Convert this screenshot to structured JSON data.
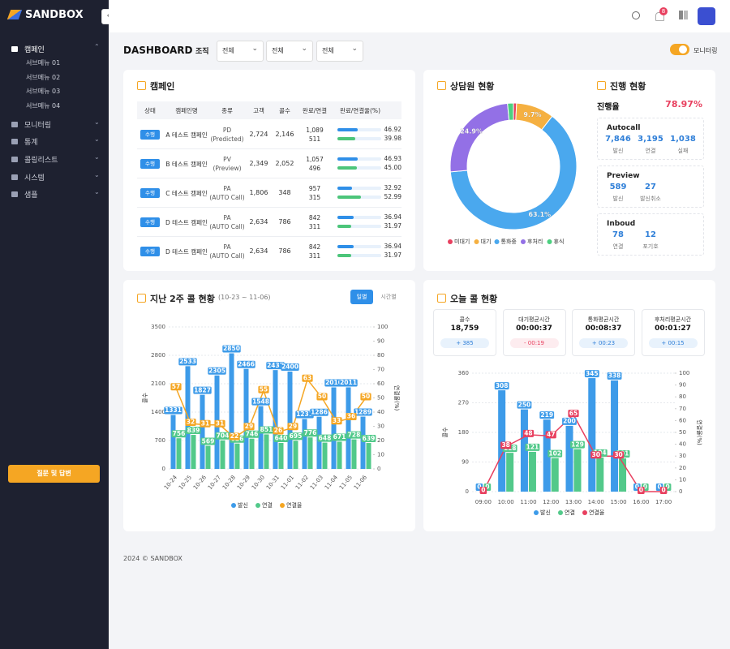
{
  "sidebar": {
    "logo": "SANDBOX",
    "menu": [
      {
        "label": "캠페인",
        "children": [
          "서브메뉴 01",
          "서브메뉴 02",
          "서브메뉴 03",
          "서브메뉴 04"
        ]
      },
      {
        "label": "모니터링"
      },
      {
        "label": "통계"
      },
      {
        "label": "콜링리스트"
      },
      {
        "label": "시스템"
      },
      {
        "label": "샘플"
      }
    ],
    "help_button": "질문 및 답변"
  },
  "topbar": {
    "notification_count": 8
  },
  "header": {
    "title": "DASHBOARD",
    "org_label": "조직",
    "filters": [
      "전체",
      "전체",
      "전체"
    ],
    "monitoring_label": "모니터링"
  },
  "campaign": {
    "title": "캠페인",
    "columns": [
      "상태",
      "캠페인명",
      "종류",
      "고객",
      "콜수",
      "완료/연결",
      "완료/연결율(%)"
    ],
    "rows": [
      {
        "status": "수행",
        "name": "A 테스트 캠페인",
        "type": "PD",
        "type_detail": "(Predicted)",
        "customers": "2,724",
        "calls": "2,146",
        "completed": "1,089",
        "connected": "511",
        "completion_rate": 46.92,
        "connection_rate": 39.98
      },
      {
        "status": "수행",
        "name": "B 테스트 캠페인",
        "type": "PV",
        "type_detail": "(Preview)",
        "customers": "2,349",
        "calls": "2,052",
        "completed": "1,057",
        "connected": "496",
        "completion_rate": 46.93,
        "connection_rate": {
          "value": 45,
          "label": "45.00"
        }
      },
      {
        "status": "수행",
        "name": "C 테스트 캠페인",
        "type": "PA",
        "type_detail": "(AUTO Call)",
        "customers": "1,806",
        "calls": "348",
        "completed": "957",
        "connected": "315",
        "completion_rate": 32.92,
        "connection_rate": 52.99
      },
      {
        "status": "수행",
        "name": "D 테스트 캠페인",
        "type": "PA",
        "type_detail": "(AUTO Call)",
        "customers": "2,634",
        "calls": "786",
        "completed": "842",
        "connected": "311",
        "completion_rate": 36.94,
        "connection_rate": 31.97
      },
      {
        "status": "수행",
        "name": "D 테스트 캠페인",
        "type": "PA",
        "type_detail": "(AUTO Call)",
        "customers": "2,634",
        "calls": "786",
        "completed": "842",
        "connected": "311",
        "completion_rate": 36.94,
        "connection_rate": 31.97
      }
    ]
  },
  "progress": {
    "title": "진행 현황",
    "rate_label": "진행율",
    "rate": "78.97%",
    "groups": [
      {
        "name": "Autocall",
        "stats": [
          {
            "value": "7,846",
            "label": "발신"
          },
          {
            "value": "3,195",
            "label": "연결"
          },
          {
            "value": "1,038",
            "label": "실패"
          }
        ]
      },
      {
        "name": "Preview",
        "stats": [
          {
            "value": "589",
            "label": "발신"
          },
          {
            "value": "27",
            "label": "발신취소"
          }
        ]
      },
      {
        "name": "Inboud",
        "stats": [
          {
            "value": "78",
            "label": "연결"
          },
          {
            "value": "12",
            "label": "포기호"
          }
        ]
      }
    ]
  },
  "chart_data": [
    {
      "type": "donut",
      "title": "상담원 현황",
      "categories": [
        "미대기",
        "대기",
        "통화중",
        "후처리",
        "휴식"
      ],
      "values": [
        0.8,
        9.7,
        63.1,
        24.9,
        1.5
      ],
      "value_labels": [
        null,
        "9.7%",
        "63.1%",
        "24.9%",
        null
      ],
      "colors": [
        "#e8405f",
        "#f5b041",
        "#4aa8ee",
        "#9370e6",
        "#4cd080"
      ]
    },
    {
      "type": "bar_line",
      "title": "지난 2주 콜 현황",
      "subtitle": "(10-23 ~ 11-06)",
      "tabs": [
        "일별",
        "시간별"
      ],
      "categories": [
        "10-24",
        "10-25",
        "10-26",
        "10-27",
        "10-28",
        "10-29",
        "10-30",
        "10-31",
        "11-01",
        "11-02",
        "11-03",
        "11-04",
        "11-05",
        "11-06"
      ],
      "series": [
        {
          "name": "발신",
          "color": "#3d9be9",
          "values": [
            1331,
            2533,
            1827,
            2305,
            2850,
            2466,
            1548,
            2437,
            2400,
            1231,
            1286,
            2010,
            2011,
            1289
          ]
        },
        {
          "name": "연결",
          "color": "#52c98a",
          "values": [
            756,
            839,
            569,
            704,
            626,
            746,
            851,
            640,
            695,
            776,
            648,
            671,
            728,
            639
          ]
        },
        {
          "name": "연결율",
          "color": "#f5a623",
          "axis": "y2",
          "values": [
            57,
            32,
            31,
            31,
            22,
            29,
            55,
            26,
            29,
            63,
            50,
            33,
            36,
            50
          ]
        }
      ],
      "ylim": [
        0,
        3500
      ],
      "yticks": [
        0,
        700,
        1400,
        2100,
        2800,
        3500
      ],
      "y2lim": [
        0,
        100
      ],
      "y2ticks": [
        0,
        10,
        20,
        30,
        40,
        50,
        60,
        70,
        80,
        90,
        100
      ],
      "ylabel": "콜수",
      "y2label": "연결율(%)",
      "grid": true
    },
    {
      "type": "bar_line",
      "title": "오늘 콜 현황",
      "cards": [
        {
          "label": "콜수",
          "value": "18,759",
          "change": "+ 385"
        },
        {
          "label": "대기평균시간",
          "value": "00:00:37",
          "change": "- 00:19"
        },
        {
          "label": "통화평균시간",
          "value": "00:08:37",
          "change": "+ 00:23"
        },
        {
          "label": "후처리평균시간",
          "value": "00:01:27",
          "change": "+ 00:15"
        }
      ],
      "categories": [
        "09:00",
        "10:00",
        "11:00",
        "12:00",
        "13:00",
        "14:00",
        "15:00",
        "16:00",
        "17:00"
      ],
      "series": [
        {
          "name": "발신",
          "color": "#3d9be9",
          "values": [
            0,
            308,
            250,
            219,
            200,
            345,
            338,
            0,
            0
          ]
        },
        {
          "name": "연결",
          "color": "#52c98a",
          "values": [
            0,
            118,
            121,
            102,
            129,
            104,
            101,
            0,
            0
          ]
        },
        {
          "name": "연결율",
          "color": "#e8405f",
          "axis": "y2",
          "values": [
            0,
            38,
            48,
            47,
            65,
            30,
            30,
            0,
            0
          ]
        }
      ],
      "ylim": [
        0,
        360
      ],
      "yticks": [
        0,
        90,
        180,
        270,
        360
      ],
      "y2lim": [
        0,
        100
      ],
      "y2ticks": [
        0,
        10,
        20,
        30,
        40,
        50,
        60,
        70,
        80,
        90,
        100
      ],
      "ylabel": "콜수",
      "y2label": "연결율(%)",
      "grid": true
    }
  ],
  "footer": "2024 © SANDBOX"
}
